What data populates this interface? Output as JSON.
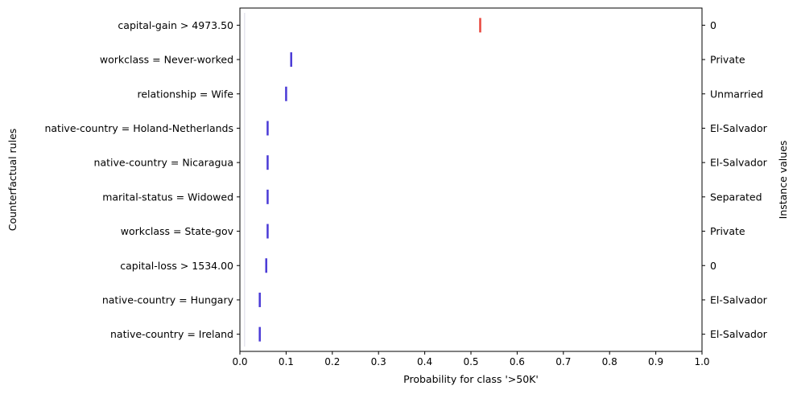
{
  "chart_data": {
    "type": "scatter",
    "xlabel": "Probability for class '>50K'",
    "ylabel": "Counterfactual rules",
    "ylabel_right": "Instance values",
    "xlim": [
      0.0,
      1.0
    ],
    "xticks": [
      "0.0",
      "0.1",
      "0.2",
      "0.3",
      "0.4",
      "0.5",
      "0.6",
      "0.7",
      "0.8",
      "0.9",
      "1.0"
    ],
    "grid": false,
    "legend": "none",
    "colors": {
      "above_threshold": "#e8453c",
      "below_threshold": "#4a3ad6",
      "axis": "#000000"
    },
    "rules": [
      {
        "rule": "capital-gain > 4973.50",
        "instance_value": "0",
        "probability": 0.52,
        "low": 0.518,
        "high": 0.522,
        "color": "#e8453c"
      },
      {
        "rule": "workclass = Never-worked",
        "instance_value": "Private",
        "probability": 0.111,
        "low": 0.109,
        "high": 0.113,
        "color": "#4a3ad6"
      },
      {
        "rule": "relationship = Wife",
        "instance_value": "Unmarried",
        "probability": 0.1,
        "low": 0.1,
        "high": 0.1,
        "color": "#4a3ad6"
      },
      {
        "rule": "native-country = Holand-Netherlands",
        "instance_value": "El-Salvador",
        "probability": 0.06,
        "low": 0.06,
        "high": 0.06,
        "color": "#4a3ad6"
      },
      {
        "rule": "native-country = Nicaragua",
        "instance_value": "El-Salvador",
        "probability": 0.06,
        "low": 0.06,
        "high": 0.06,
        "color": "#4a3ad6"
      },
      {
        "rule": "marital-status = Widowed",
        "instance_value": "Separated",
        "probability": 0.06,
        "low": 0.06,
        "high": 0.06,
        "color": "#4a3ad6"
      },
      {
        "rule": "workclass = State-gov",
        "instance_value": "Private",
        "probability": 0.06,
        "low": 0.06,
        "high": 0.06,
        "color": "#4a3ad6"
      },
      {
        "rule": "capital-loss > 1534.00",
        "instance_value": "0",
        "probability": 0.057,
        "low": 0.057,
        "high": 0.057,
        "color": "#4a3ad6"
      },
      {
        "rule": "native-country = Hungary",
        "instance_value": "El-Salvador",
        "probability": 0.043,
        "low": 0.043,
        "high": 0.043,
        "color": "#4a3ad6"
      },
      {
        "rule": "native-country = Ireland",
        "instance_value": "El-Salvador",
        "probability": 0.043,
        "low": 0.043,
        "high": 0.043,
        "color": "#4a3ad6"
      }
    ]
  }
}
